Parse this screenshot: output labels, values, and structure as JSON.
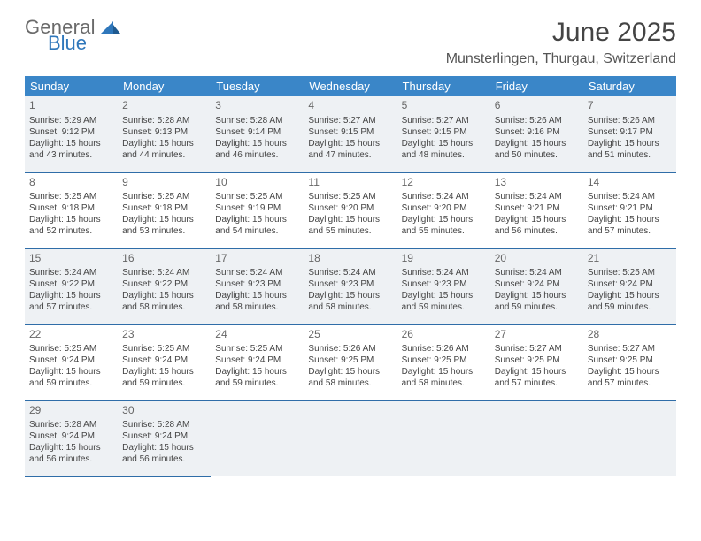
{
  "logo": {
    "text_general": "General",
    "text_blue": "Blue"
  },
  "title": "June 2025",
  "location": "Munsterlingen, Thurgau, Switzerland",
  "colors": {
    "header_bg": "#3a86c8",
    "header_text": "#ffffff",
    "row_border": "#2f6da8",
    "shaded_row_bg": "#eef1f4",
    "logo_gray": "#6a6a6a",
    "logo_blue": "#2f77bb"
  },
  "typography": {
    "title_fontsize_pt": 22,
    "location_fontsize_pt": 12,
    "header_fontsize_pt": 10,
    "cell_fontsize_pt": 7.5
  },
  "columns": [
    "Sunday",
    "Monday",
    "Tuesday",
    "Wednesday",
    "Thursday",
    "Friday",
    "Saturday"
  ],
  "weeks": [
    {
      "shaded": true,
      "days": [
        {
          "n": 1,
          "sr": "5:29 AM",
          "ss": "9:12 PM",
          "dl": "15 hours and 43 minutes."
        },
        {
          "n": 2,
          "sr": "5:28 AM",
          "ss": "9:13 PM",
          "dl": "15 hours and 44 minutes."
        },
        {
          "n": 3,
          "sr": "5:28 AM",
          "ss": "9:14 PM",
          "dl": "15 hours and 46 minutes."
        },
        {
          "n": 4,
          "sr": "5:27 AM",
          "ss": "9:15 PM",
          "dl": "15 hours and 47 minutes."
        },
        {
          "n": 5,
          "sr": "5:27 AM",
          "ss": "9:15 PM",
          "dl": "15 hours and 48 minutes."
        },
        {
          "n": 6,
          "sr": "5:26 AM",
          "ss": "9:16 PM",
          "dl": "15 hours and 50 minutes."
        },
        {
          "n": 7,
          "sr": "5:26 AM",
          "ss": "9:17 PM",
          "dl": "15 hours and 51 minutes."
        }
      ]
    },
    {
      "shaded": false,
      "days": [
        {
          "n": 8,
          "sr": "5:25 AM",
          "ss": "9:18 PM",
          "dl": "15 hours and 52 minutes."
        },
        {
          "n": 9,
          "sr": "5:25 AM",
          "ss": "9:18 PM",
          "dl": "15 hours and 53 minutes."
        },
        {
          "n": 10,
          "sr": "5:25 AM",
          "ss": "9:19 PM",
          "dl": "15 hours and 54 minutes."
        },
        {
          "n": 11,
          "sr": "5:25 AM",
          "ss": "9:20 PM",
          "dl": "15 hours and 55 minutes."
        },
        {
          "n": 12,
          "sr": "5:24 AM",
          "ss": "9:20 PM",
          "dl": "15 hours and 55 minutes."
        },
        {
          "n": 13,
          "sr": "5:24 AM",
          "ss": "9:21 PM",
          "dl": "15 hours and 56 minutes."
        },
        {
          "n": 14,
          "sr": "5:24 AM",
          "ss": "9:21 PM",
          "dl": "15 hours and 57 minutes."
        }
      ]
    },
    {
      "shaded": true,
      "days": [
        {
          "n": 15,
          "sr": "5:24 AM",
          "ss": "9:22 PM",
          "dl": "15 hours and 57 minutes."
        },
        {
          "n": 16,
          "sr": "5:24 AM",
          "ss": "9:22 PM",
          "dl": "15 hours and 58 minutes."
        },
        {
          "n": 17,
          "sr": "5:24 AM",
          "ss": "9:23 PM",
          "dl": "15 hours and 58 minutes."
        },
        {
          "n": 18,
          "sr": "5:24 AM",
          "ss": "9:23 PM",
          "dl": "15 hours and 58 minutes."
        },
        {
          "n": 19,
          "sr": "5:24 AM",
          "ss": "9:23 PM",
          "dl": "15 hours and 59 minutes."
        },
        {
          "n": 20,
          "sr": "5:24 AM",
          "ss": "9:24 PM",
          "dl": "15 hours and 59 minutes."
        },
        {
          "n": 21,
          "sr": "5:25 AM",
          "ss": "9:24 PM",
          "dl": "15 hours and 59 minutes."
        }
      ]
    },
    {
      "shaded": false,
      "days": [
        {
          "n": 22,
          "sr": "5:25 AM",
          "ss": "9:24 PM",
          "dl": "15 hours and 59 minutes."
        },
        {
          "n": 23,
          "sr": "5:25 AM",
          "ss": "9:24 PM",
          "dl": "15 hours and 59 minutes."
        },
        {
          "n": 24,
          "sr": "5:25 AM",
          "ss": "9:24 PM",
          "dl": "15 hours and 59 minutes."
        },
        {
          "n": 25,
          "sr": "5:26 AM",
          "ss": "9:25 PM",
          "dl": "15 hours and 58 minutes."
        },
        {
          "n": 26,
          "sr": "5:26 AM",
          "ss": "9:25 PM",
          "dl": "15 hours and 58 minutes."
        },
        {
          "n": 27,
          "sr": "5:27 AM",
          "ss": "9:25 PM",
          "dl": "15 hours and 57 minutes."
        },
        {
          "n": 28,
          "sr": "5:27 AM",
          "ss": "9:25 PM",
          "dl": "15 hours and 57 minutes."
        }
      ]
    },
    {
      "shaded": true,
      "days": [
        {
          "n": 29,
          "sr": "5:28 AM",
          "ss": "9:24 PM",
          "dl": "15 hours and 56 minutes."
        },
        {
          "n": 30,
          "sr": "5:28 AM",
          "ss": "9:24 PM",
          "dl": "15 hours and 56 minutes."
        },
        null,
        null,
        null,
        null,
        null
      ]
    }
  ],
  "labels": {
    "sunrise": "Sunrise:",
    "sunset": "Sunset:",
    "daylight": "Daylight:"
  }
}
